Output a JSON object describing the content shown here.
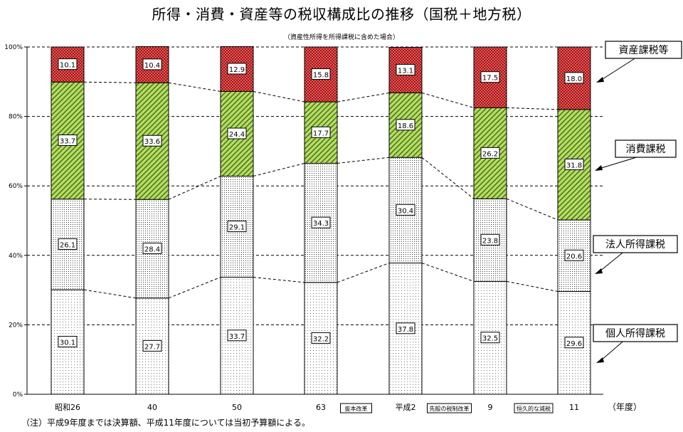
{
  "chart_data": {
    "type": "bar",
    "stacked": true,
    "percent": true,
    "title": "所得・消費・資産等の税収構成比の推移（国税＋地方税）",
    "subtitle": "（資産性所得を所得課税に含めた場合）",
    "xlabel": "（年度）",
    "ylabel": "",
    "ylim": [
      0,
      100
    ],
    "yticks": [
      "0%",
      "20%",
      "40%",
      "60%",
      "80%",
      "100%"
    ],
    "categories": [
      "昭和26",
      "40",
      "50",
      "63",
      "平成2",
      "9",
      "11"
    ],
    "series": [
      {
        "name": "個人所得課税",
        "values": [
          30.1,
          27.7,
          33.7,
          32.2,
          37.8,
          32.5,
          29.6
        ],
        "color": "#ffffff",
        "pattern": "fine-dots"
      },
      {
        "name": "法人所得課税",
        "values": [
          26.1,
          28.4,
          29.1,
          34.3,
          30.4,
          23.8,
          20.6
        ],
        "color": "#ffffff",
        "pattern": "dense-dots"
      },
      {
        "name": "消費課税",
        "values": [
          33.7,
          33.6,
          24.4,
          17.7,
          18.6,
          26.2,
          31.8
        ],
        "color": "#9acd32",
        "pattern": "diagonal"
      },
      {
        "name": "資産課税等",
        "values": [
          10.1,
          10.4,
          12.9,
          15.8,
          13.1,
          17.5,
          18.0
        ],
        "color": "#d33030",
        "pattern": "checker"
      }
    ],
    "annotations": [
      "抜本改革",
      "先般の税制改革",
      "恒久的な減税"
    ],
    "legend_position": "right"
  },
  "note": "（注）平成9年度までは決算額、平成11年度については当初予算額による。"
}
